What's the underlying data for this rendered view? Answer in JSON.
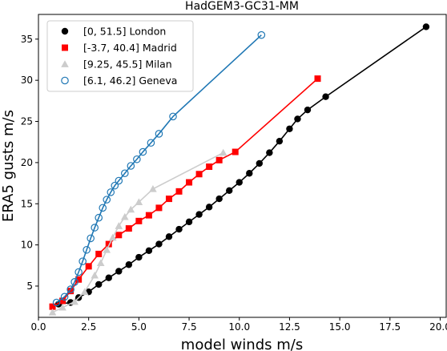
{
  "chart_data": {
    "type": "scatter",
    "title": "HadGEM3-GC31-MM",
    "xlabel": "model winds m/s",
    "ylabel": "ERA5 gusts m/s",
    "xlim": [
      0,
      20.3
    ],
    "ylim": [
      1.2,
      38.0
    ],
    "xticks": [
      0.0,
      2.5,
      5.0,
      7.5,
      10.0,
      12.5,
      15.0,
      17.5,
      20.0
    ],
    "xtick_labels": [
      "0.0",
      "2.5",
      "5.0",
      "7.5",
      "10.0",
      "12.5",
      "15.0",
      "17.5",
      "20.0"
    ],
    "yticks": [
      5,
      10,
      15,
      20,
      25,
      30,
      35
    ],
    "ytick_labels": [
      "5",
      "10",
      "15",
      "20",
      "25",
      "30",
      "35"
    ],
    "grid": false,
    "legend_position": "top-left",
    "series": [
      {
        "name": "[0, 51.5] London",
        "marker": "circle-filled",
        "color": "#000000",
        "points": [
          [
            1.0,
            2.8
          ],
          [
            1.6,
            3.0
          ],
          [
            2.0,
            3.6
          ],
          [
            2.5,
            4.3
          ],
          [
            3.0,
            5.2
          ],
          [
            3.5,
            6.0
          ],
          [
            4.0,
            6.8
          ],
          [
            4.5,
            7.6
          ],
          [
            5.0,
            8.5
          ],
          [
            5.5,
            9.3
          ],
          [
            6.0,
            10.1
          ],
          [
            6.5,
            11.0
          ],
          [
            7.0,
            11.9
          ],
          [
            7.5,
            12.8
          ],
          [
            8.0,
            13.7
          ],
          [
            8.5,
            14.6
          ],
          [
            9.0,
            15.6
          ],
          [
            9.5,
            16.6
          ],
          [
            10.0,
            17.6
          ],
          [
            10.5,
            18.7
          ],
          [
            11.0,
            19.9
          ],
          [
            11.5,
            21.2
          ],
          [
            12.0,
            22.6
          ],
          [
            12.5,
            24.1
          ],
          [
            12.9,
            25.3
          ],
          [
            13.4,
            26.4
          ],
          [
            14.3,
            28.0
          ],
          [
            19.3,
            36.5
          ]
        ]
      },
      {
        "name": "[-3.7, 40.4] Madrid",
        "marker": "square-filled",
        "color": "#ff0000",
        "points": [
          [
            0.7,
            2.5
          ],
          [
            1.2,
            3.2
          ],
          [
            1.6,
            4.4
          ],
          [
            2.0,
            5.8
          ],
          [
            2.5,
            7.4
          ],
          [
            3.0,
            8.9
          ],
          [
            3.5,
            10.1
          ],
          [
            4.0,
            11.2
          ],
          [
            4.5,
            12.0
          ],
          [
            5.0,
            12.9
          ],
          [
            5.5,
            13.6
          ],
          [
            6.0,
            14.5
          ],
          [
            6.5,
            15.6
          ],
          [
            7.0,
            16.5
          ],
          [
            7.5,
            17.6
          ],
          [
            8.0,
            18.6
          ],
          [
            8.5,
            19.5
          ],
          [
            9.0,
            20.3
          ],
          [
            9.8,
            21.3
          ],
          [
            13.9,
            30.2
          ]
        ]
      },
      {
        "name": "[9.25, 45.5] Milan",
        "marker": "triangle-filled",
        "color": "#cccccc",
        "points": [
          [
            0.7,
            1.8
          ],
          [
            1.2,
            2.4
          ],
          [
            1.8,
            3.1
          ],
          [
            2.3,
            4.3
          ],
          [
            2.8,
            6.3
          ],
          [
            3.1,
            7.8
          ],
          [
            3.4,
            9.4
          ],
          [
            3.7,
            10.9
          ],
          [
            4.0,
            12.3
          ],
          [
            4.3,
            13.4
          ],
          [
            4.6,
            14.3
          ],
          [
            5.0,
            15.2
          ],
          [
            5.7,
            16.8
          ],
          [
            9.2,
            21.2
          ]
        ]
      },
      {
        "name": "[6.1, 46.2] Geneva",
        "marker": "circle-open",
        "color": "#1f77b4",
        "points": [
          [
            0.9,
            3.0
          ],
          [
            1.3,
            3.7
          ],
          [
            1.6,
            4.6
          ],
          [
            1.8,
            5.5
          ],
          [
            2.0,
            6.7
          ],
          [
            2.2,
            8.0
          ],
          [
            2.4,
            9.4
          ],
          [
            2.6,
            10.8
          ],
          [
            2.8,
            12.1
          ],
          [
            3.0,
            13.3
          ],
          [
            3.2,
            14.5
          ],
          [
            3.4,
            15.5
          ],
          [
            3.6,
            16.4
          ],
          [
            3.8,
            17.2
          ],
          [
            4.0,
            17.8
          ],
          [
            4.3,
            18.7
          ],
          [
            4.6,
            19.6
          ],
          [
            4.9,
            20.4
          ],
          [
            5.2,
            21.3
          ],
          [
            5.6,
            22.4
          ],
          [
            6.0,
            23.5
          ],
          [
            6.7,
            25.6
          ],
          [
            11.1,
            35.5
          ]
        ]
      }
    ]
  }
}
